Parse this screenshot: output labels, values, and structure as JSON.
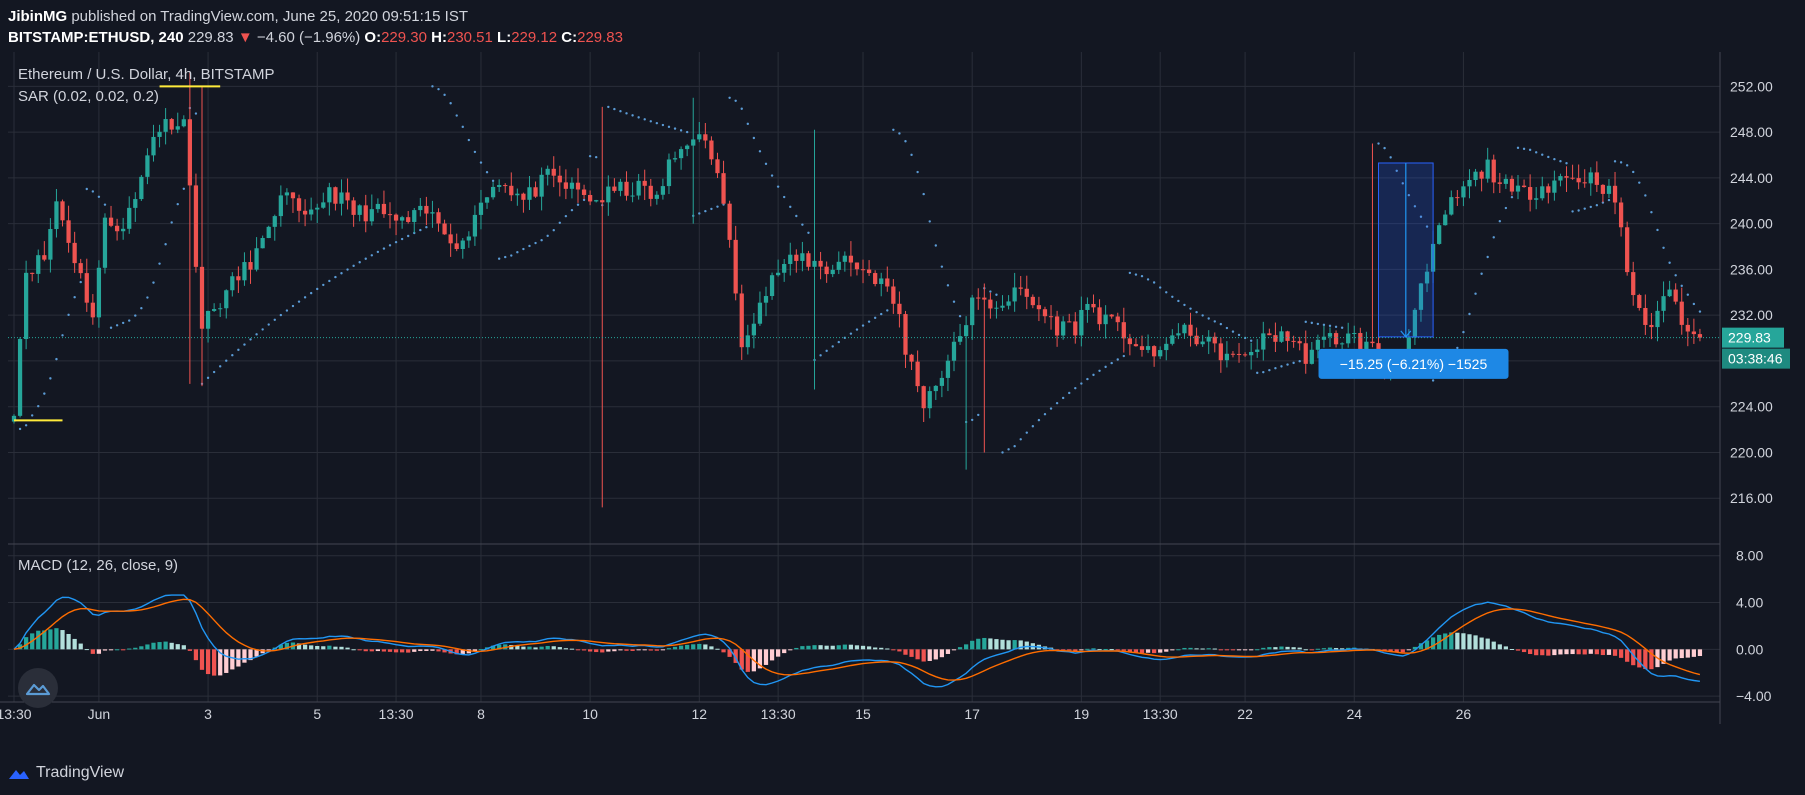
{
  "header": {
    "publisher": "JibinMG",
    "published_text": "published on TradingView.com, June 25, 2020 09:51:15 IST",
    "symbol": "BITSTAMP:ETHUSD, 240",
    "last": "229.83",
    "change": "−4.60 (−1.96%)",
    "o_label": "O:",
    "o": "229.30",
    "h_label": "H:",
    "h": "230.51",
    "l_label": "L:",
    "l": "229.12",
    "c_label": "C:",
    "c": "229.83"
  },
  "footer": {
    "brand": "TradingView"
  },
  "colors": {
    "background": "#131722",
    "up": "#26a69a",
    "down": "#ef5350",
    "macd_line": "#2196f3",
    "signal_line": "#ff6d00",
    "sar": "#5b9bd5",
    "hist_up_light": "#b2dfdb",
    "hist_down_light": "#ffcdd2",
    "grid": "#2a2e39"
  },
  "chart_data": [
    {
      "type": "candlestick",
      "title": "Ethereum / U.S. Dollar, 4h, BITSTAMP",
      "indicator_label": "SAR (0.02, 0.02, 0.2)",
      "ylim": [
        212,
        255
      ],
      "yticks": [
        "252.00",
        "248.00",
        "244.00",
        "240.00",
        "236.00",
        "232.00",
        "228.00",
        "224.00",
        "220.00",
        "216.00"
      ],
      "xticks": [
        {
          "label": "13:30",
          "i": 0
        },
        {
          "label": "Jun",
          "i": 14
        },
        {
          "label": "3",
          "i": 32
        },
        {
          "label": "5",
          "i": 50
        },
        {
          "label": "13:30",
          "i": 63
        },
        {
          "label": "8",
          "i": 77
        },
        {
          "label": "10",
          "i": 95
        },
        {
          "label": "12",
          "i": 113
        },
        {
          "label": "13:30",
          "i": 126
        },
        {
          "label": "15",
          "i": 140
        },
        {
          "label": "17",
          "i": 158
        },
        {
          "label": "19",
          "i": 176
        },
        {
          "label": "13:30",
          "i": 189
        },
        {
          "label": "22",
          "i": 203
        },
        {
          "label": "24",
          "i": 221
        },
        {
          "label": "26",
          "i": 239
        }
      ],
      "last_price_label": "229.83",
      "countdown_label": "03:38:46",
      "hlines": [
        {
          "y": 252.0,
          "i0": 24,
          "i1": 34,
          "color": "#ffeb3b"
        },
        {
          "y": 222.8,
          "i0": 0,
          "i1": 8,
          "color": "#ffeb3b"
        }
      ],
      "measure": {
        "label": "−15.25 (−6.21%) −1525",
        "i0": 225,
        "i1": 234,
        "y_top": 245.3,
        "y_bottom": 230.1
      }
    },
    {
      "type": "macd",
      "title": "MACD (12, 26, close, 9)",
      "ylim": [
        -4.5,
        9.0
      ],
      "yticks": [
        "8.00",
        "4.00",
        "0.00",
        "−4.00"
      ]
    }
  ]
}
